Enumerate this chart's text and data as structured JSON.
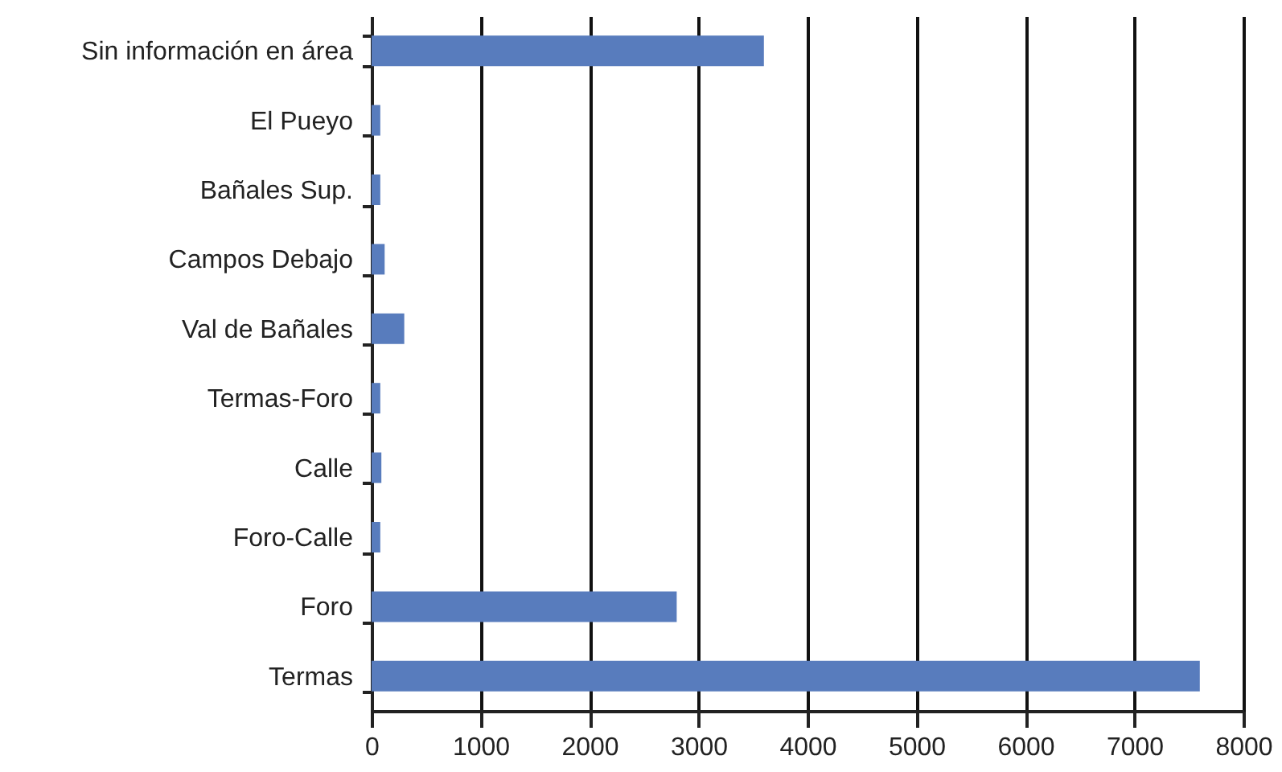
{
  "chart_data": {
    "type": "bar",
    "orientation": "horizontal",
    "categories": [
      "Sin información en área",
      "El Pueyo",
      "Bañales Sup.",
      "Campos Debajo",
      "Val de Bañales",
      "Termas-Foro",
      "Calle",
      "Foro-Calle",
      "Foro",
      "Termas"
    ],
    "series": [
      {
        "color": "#587cbd",
        "values": [
          3600,
          80,
          80,
          120,
          300,
          80,
          90,
          80,
          2800,
          7600
        ]
      }
    ],
    "xlim": [
      0,
      8000
    ],
    "xticks": [
      0,
      1000,
      2000,
      3000,
      4000,
      5000,
      6000,
      7000,
      8000
    ],
    "grid": "x"
  }
}
